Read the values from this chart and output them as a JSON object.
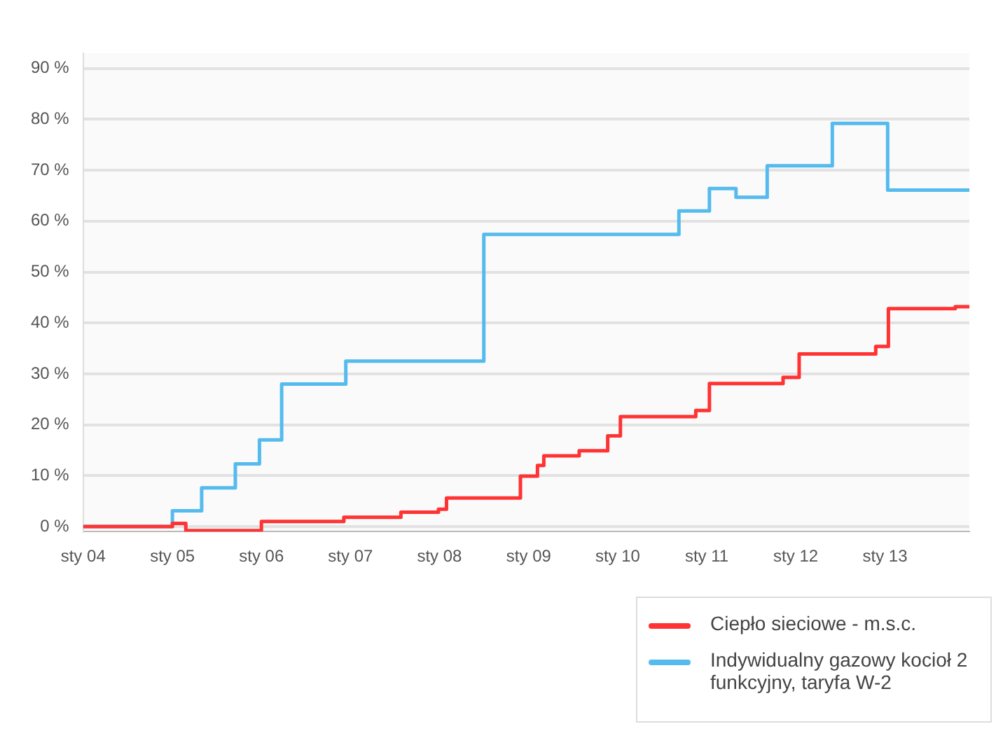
{
  "chart_data": {
    "type": "step",
    "xlim": [
      "2004-01-01",
      "2013-12-13"
    ],
    "ylim": [
      -1,
      93
    ],
    "xticks": [
      {
        "value": "2004-01-01",
        "label": "sty 04"
      },
      {
        "value": "2005-01-01",
        "label": "sty 05"
      },
      {
        "value": "2006-01-01",
        "label": "sty 06"
      },
      {
        "value": "2007-01-01",
        "label": "sty 07"
      },
      {
        "value": "2008-01-01",
        "label": "sty 08"
      },
      {
        "value": "2009-01-01",
        "label": "sty 09"
      },
      {
        "value": "2010-01-01",
        "label": "sty 10"
      },
      {
        "value": "2011-01-01",
        "label": "sty 11"
      },
      {
        "value": "2012-01-01",
        "label": "sty 12"
      },
      {
        "value": "2013-01-01",
        "label": "sty 13"
      }
    ],
    "yticks": [
      {
        "value": 0,
        "label": "0 %"
      },
      {
        "value": 10,
        "label": "10 %"
      },
      {
        "value": 20,
        "label": "20 %"
      },
      {
        "value": 30,
        "label": "30 %"
      },
      {
        "value": 40,
        "label": "40 %"
      },
      {
        "value": 50,
        "label": "50 %"
      },
      {
        "value": 60,
        "label": "60 %"
      },
      {
        "value": 70,
        "label": "70 %"
      },
      {
        "value": 80,
        "label": "80 %"
      },
      {
        "value": 90,
        "label": "90 %"
      }
    ],
    "grid": "y",
    "legend": "bottom right",
    "marker": "none",
    "line_style": "solid",
    "series": [
      {
        "name": "Ciepło sieciowe - m.s.c.",
        "color": "#ff3333",
        "x": [
          "2004-01-01",
          "2005-01-01",
          "2005-02-25",
          "2006-01-01",
          "2006-12-05",
          "2007-07-27",
          "2007-12-28",
          "2008-01-30",
          "2008-11-28",
          "2009-02-06",
          "2009-03-04",
          "2009-07-27",
          "2009-11-21",
          "2010-01-12",
          "2010-11-17",
          "2011-01-12",
          "2011-11-10",
          "2012-01-15",
          "2012-11-24",
          "2013-01-15",
          "2013-10-16",
          "2013-12-13"
        ],
        "values": [
          0,
          0.6,
          -0.8,
          1,
          1.8,
          2.8,
          3.4,
          5.6,
          9.9,
          12,
          13.9,
          14.9,
          17.8,
          21.6,
          22.8,
          28.1,
          29.3,
          33.9,
          35.4,
          42.8,
          43.2,
          43.2
        ]
      },
      {
        "name": "Indywidualny gazowy kocioł 2 funkcyjny, taryfa W-2",
        "color": "#55bbee",
        "x": [
          "2004-01-01",
          "2005-01-01",
          "2005-05-01",
          "2005-09-16",
          "2005-12-24",
          "2006-03-25",
          "2006-12-13",
          "2008-07-01",
          "2010-09-09",
          "2011-01-12",
          "2011-05-01",
          "2011-09-06",
          "2012-05-30",
          "2013-01-12",
          "2013-12-13"
        ],
        "values": [
          0,
          3.1,
          7.6,
          12.3,
          17,
          28,
          32.5,
          57.4,
          62,
          66.4,
          64.7,
          70.9,
          79.2,
          66.1,
          66.1
        ]
      }
    ]
  }
}
